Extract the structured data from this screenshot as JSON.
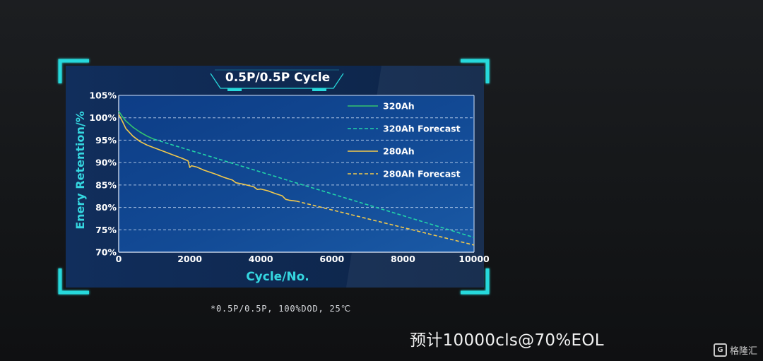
{
  "chart_data": {
    "type": "line",
    "title": "0.5P/0.5P Cycle",
    "xlabel": "Cycle/No.",
    "ylabel": "Enery Retention/%",
    "xlim": [
      0,
      10000
    ],
    "ylim": [
      70,
      105
    ],
    "x_ticks": [
      0,
      2000,
      4000,
      6000,
      8000,
      10000
    ],
    "y_ticks": [
      70,
      75,
      80,
      85,
      90,
      95,
      100,
      105
    ],
    "y_tick_labels": [
      "70%",
      "75%",
      "80%",
      "85%",
      "90%",
      "95%",
      "100%",
      "105%"
    ],
    "legend_position": "top-right",
    "series": [
      {
        "name": "320Ah",
        "style": "solid",
        "color": "#34c46e",
        "x": [
          0,
          100,
          200,
          400,
          600,
          800,
          1000
        ],
        "y": [
          101.5,
          100.3,
          99.3,
          97.9,
          96.8,
          95.9,
          95.2
        ]
      },
      {
        "name": "320Ah Forecast",
        "style": "dashed",
        "color": "#22d3a8",
        "x": [
          1000,
          10000
        ],
        "y": [
          95.2,
          73.3
        ]
      },
      {
        "name": "280Ah",
        "style": "solid",
        "color": "#f2c94c",
        "x": [
          0,
          100,
          200,
          400,
          600,
          800,
          1000,
          1300,
          1500,
          1800,
          1950,
          2000,
          2050,
          2200,
          2400,
          2700,
          3000,
          3200,
          3300,
          3500,
          3800,
          3900,
          4000,
          4200,
          4400,
          4600,
          4700,
          4800,
          5000
        ],
        "y": [
          100.8,
          99.3,
          97.6,
          95.9,
          94.7,
          93.9,
          93.3,
          92.4,
          91.8,
          90.9,
          90.4,
          88.9,
          89.3,
          89.0,
          88.3,
          87.5,
          86.6,
          86.1,
          85.5,
          85.2,
          84.6,
          84.0,
          84.1,
          83.7,
          83.1,
          82.6,
          81.8,
          81.6,
          81.4
        ]
      },
      {
        "name": "280Ah Forecast",
        "style": "dashed",
        "color": "#f2c94c",
        "x": [
          5000,
          10000
        ],
        "y": [
          81.4,
          71.6
        ]
      }
    ]
  },
  "footnote": "*0.5P/0.5P, 100%DOD, 25℃",
  "subtitle": "预计10000cls@70%EOL",
  "watermark": "格隆汇"
}
